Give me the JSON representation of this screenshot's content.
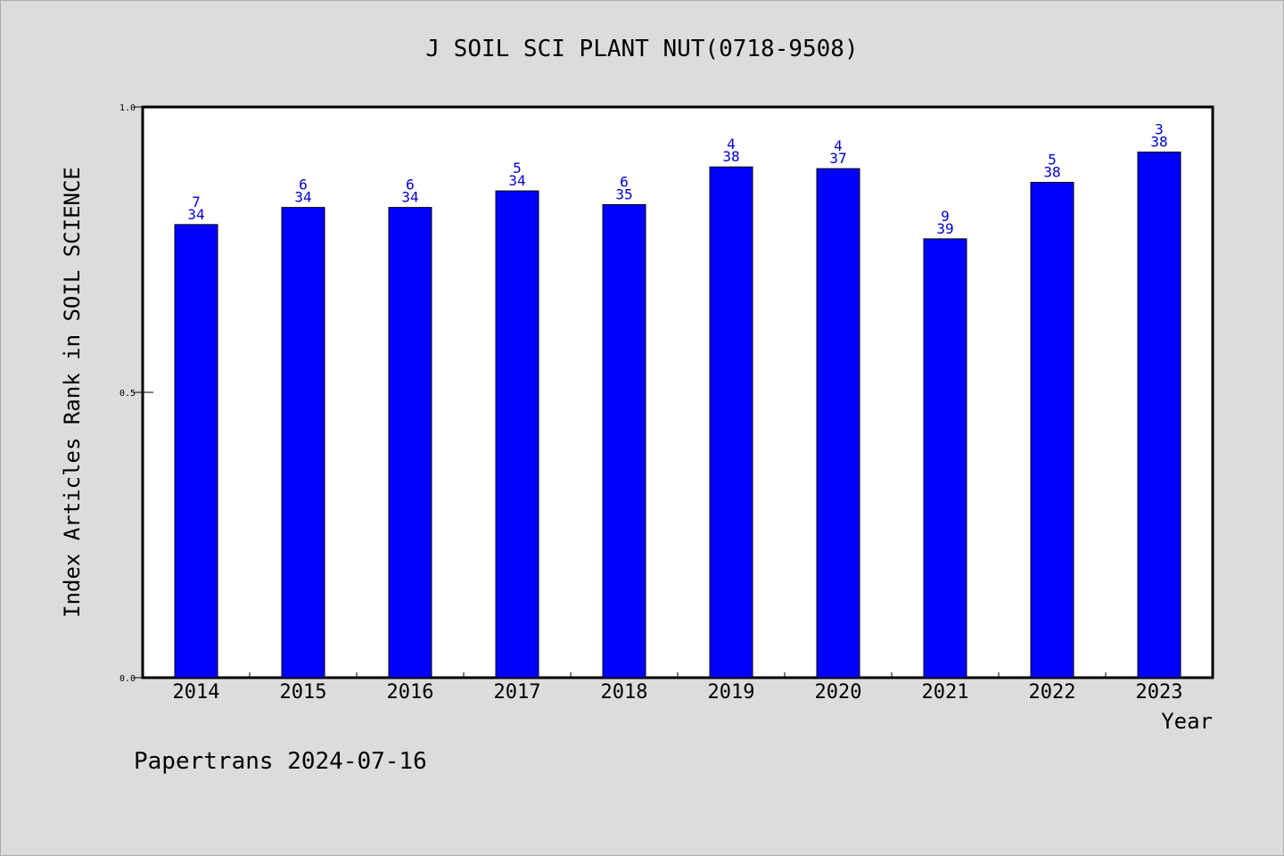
{
  "chart_data": {
    "type": "bar",
    "title": "J SOIL SCI PLANT NUT(0718-9508)",
    "xlabel": "Year",
    "ylabel": "Index Articles Rank in SOIL SCIENCE",
    "ylim": [
      0,
      1.0
    ],
    "yticks": [
      "0.0",
      "0.5",
      "1.0"
    ],
    "categories": [
      "2014",
      "2015",
      "2016",
      "2017",
      "2018",
      "2019",
      "2020",
      "2021",
      "2022",
      "2023"
    ],
    "values": [
      0.794,
      0.824,
      0.824,
      0.853,
      0.829,
      0.895,
      0.892,
      0.769,
      0.868,
      0.921
    ],
    "ranks": [
      "7",
      "6",
      "6",
      "5",
      "6",
      "4",
      "4",
      "9",
      "5",
      "3"
    ],
    "totals": [
      "34",
      "34",
      "34",
      "34",
      "35",
      "38",
      "37",
      "39",
      "38",
      "38"
    ],
    "bar_color": "#0000ff",
    "label_color": "#0000cc",
    "grid": false
  },
  "footer": "Papertrans 2024-07-16"
}
